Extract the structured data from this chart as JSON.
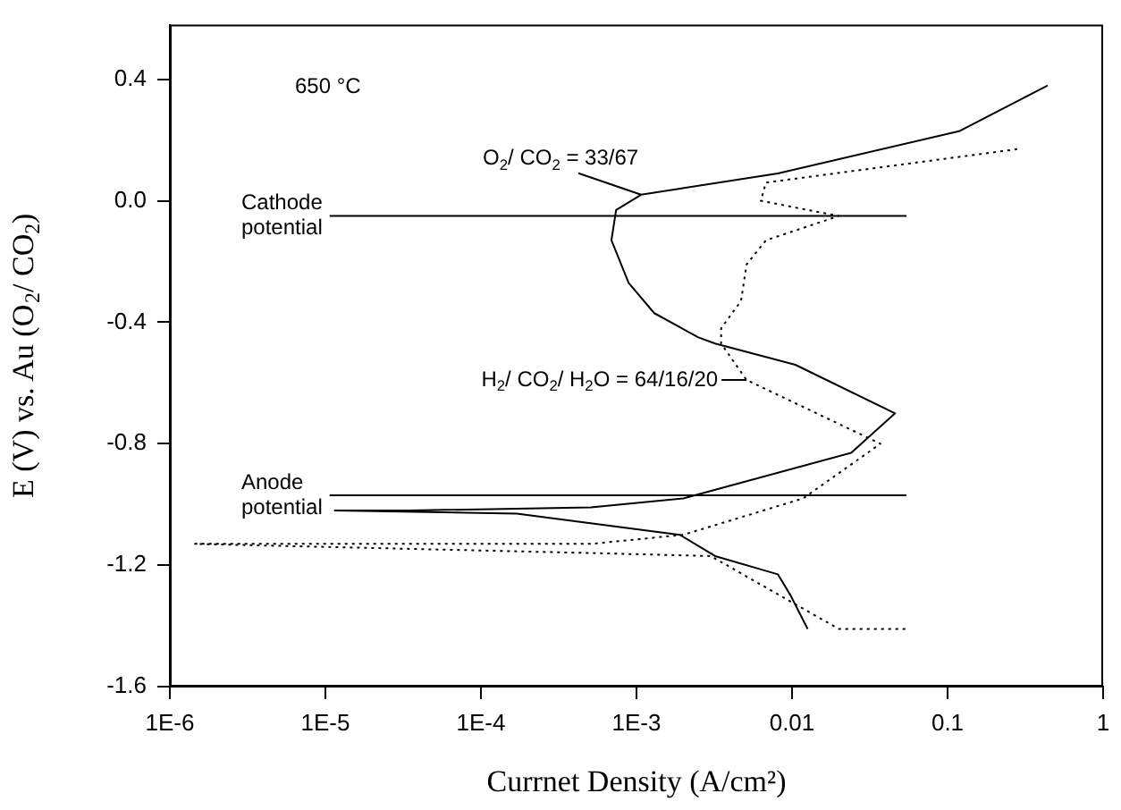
{
  "chart_data": {
    "type": "line",
    "xlabel": "Currnet Density (A/cm²)",
    "ylabel": "E (V) vs. Au (O$_{2}$/ CO$_{2}$)",
    "log": "x",
    "xlim": [
      1e-06,
      1
    ],
    "xticks": [
      {
        "value": 1e-06,
        "label": "1E-6"
      },
      {
        "value": 1e-05,
        "label": "1E-5"
      },
      {
        "value": 0.0001,
        "label": "1E-4"
      },
      {
        "value": 0.001,
        "label": "1E-3"
      },
      0.01,
      0.1,
      1
    ],
    "ylim": [
      -1.6,
      0.58
    ],
    "yticks": [
      0.4,
      {
        "value": 0.0,
        "label": "0.0"
      },
      -0.4,
      -0.8,
      -1.2,
      -1.6
    ],
    "grid": false,
    "legend": false,
    "marker": "none",
    "series": [
      {
        "color": "#000000",
        "line_style": "solid",
        "x": [
          0.44,
          0.12,
          0.0081,
          0.00107,
          0.00074,
          0.00069,
          0.00089,
          0.0013,
          0.0025,
          0.0032,
          0.0105,
          0.046,
          0.024,
          0.002,
          0.00051,
          3.4e-05,
          1.15e-05,
          0.00017,
          0.0019,
          0.0032,
          0.0081,
          0.0098,
          0.0126
        ],
        "values": [
          0.38,
          0.23,
          0.09,
          0.02,
          -0.03,
          -0.13,
          -0.27,
          -0.37,
          -0.45,
          -0.47,
          -0.54,
          -0.7,
          -0.83,
          -0.98,
          -1.01,
          -1.02,
          -1.02,
          -1.03,
          -1.1,
          -1.17,
          -1.23,
          -1.3,
          -1.41
        ]
      },
      {
        "color": "#000000",
        "line_style": "dotted",
        "x": [
          0.28,
          0.0068,
          0.0063,
          0.02,
          0.0068,
          0.0051,
          0.0047,
          0.0035,
          0.0035,
          0.0051,
          0.037,
          0.0118,
          0.002,
          0.00051,
          3.4e-05,
          1.45e-06,
          0.00051,
          0.003,
          0.0098,
          0.02,
          0.055
        ],
        "values": [
          0.17,
          0.06,
          0.0,
          -0.05,
          -0.13,
          -0.21,
          -0.33,
          -0.42,
          -0.47,
          -0.59,
          -0.8,
          -0.98,
          -1.1,
          -1.13,
          -1.13,
          -1.13,
          -1.16,
          -1.17,
          -1.32,
          -1.41,
          -1.41
        ]
      }
    ],
    "ref_lines": [
      {
        "axis": "y",
        "value": -0.05,
        "label": "Cathode potential"
      },
      {
        "axis": "y",
        "value": -0.97,
        "label": "Anode potential"
      }
    ],
    "annotations": [
      "650 °C",
      {
        "text": "O$_{2}$/ CO$_{2}$ = 33/67",
        "x": 0.00107,
        "y": 0.02
      },
      {
        "text": "H$_{2}$/ CO$_{2}$/ H$_{2}$O = 64/16/20",
        "x": 0.0051,
        "y": -0.59
      }
    ]
  }
}
